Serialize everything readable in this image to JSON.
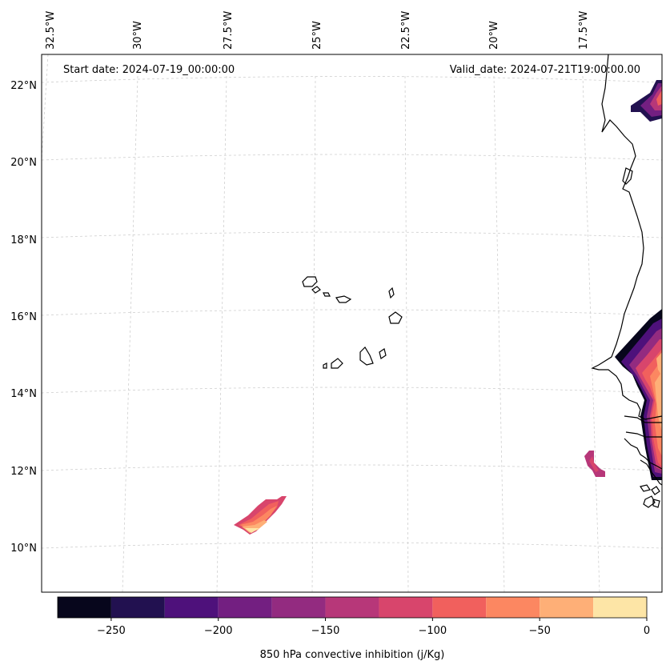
{
  "header": {
    "start_date": "Start date: 2024-07-19_00:00:00",
    "valid_date": "Valid_date: 2024-07-21T19:00:00.00"
  },
  "longitude_labels": [
    "32.5°W",
    "30°W",
    "27.5°W",
    "25°W",
    "22.5°W",
    "20°W",
    "17.5°W"
  ],
  "latitude_labels": [
    "22°N",
    "20°N",
    "18°N",
    "16°N",
    "14°N",
    "12°N",
    "10°N"
  ],
  "colorbar": {
    "label": "850 hPa convective inhibition (j/Kg)",
    "tick_labels": [
      "−250",
      "−200",
      "−150",
      "−100",
      "−50",
      "0"
    ],
    "levels": [
      -275,
      -250,
      -225,
      -200,
      -175,
      -150,
      -125,
      -100,
      -75,
      -50,
      -25,
      0
    ],
    "colors": [
      "#07061c",
      "#221150",
      "#4e117b",
      "#731f81",
      "#932b80",
      "#b73779",
      "#d8456c",
      "#f1605d",
      "#fc8761",
      "#feaf77",
      "#fde5a6"
    ]
  },
  "map": {
    "projection": "conic",
    "lon_range": [
      -33,
      -15
    ],
    "lat_range": [
      9,
      22.5
    ],
    "gridlines": true
  }
}
